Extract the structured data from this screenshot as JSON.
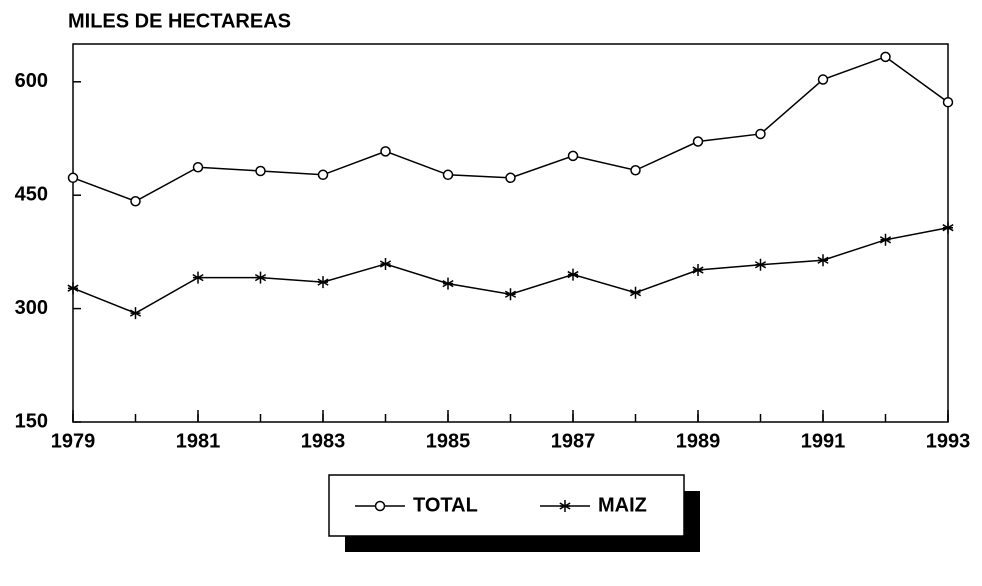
{
  "chart_data": {
    "type": "line",
    "title": "MILES DE HECTAREAS",
    "x": [
      1979,
      1980,
      1981,
      1982,
      1983,
      1984,
      1985,
      1986,
      1987,
      1988,
      1989,
      1990,
      1991,
      1992,
      1993
    ],
    "xlim": [
      1979,
      1993
    ],
    "xticks": [
      1979,
      1981,
      1983,
      1985,
      1987,
      1989,
      1991,
      1993
    ],
    "ylim": [
      150,
      650
    ],
    "yticks": [
      150,
      300,
      450,
      600
    ],
    "series": [
      {
        "name": "TOTAL",
        "color": "#000000",
        "marker": "circle",
        "values": [
          473,
          442,
          487,
          482,
          477,
          508,
          477,
          473,
          502,
          483,
          521,
          531,
          603,
          633,
          573
        ]
      },
      {
        "name": "MAIZ",
        "color": "#000000",
        "marker": "star",
        "values": [
          327,
          294,
          341,
          341,
          335,
          359,
          333,
          319,
          345,
          321,
          351,
          358,
          364,
          391,
          407
        ]
      }
    ]
  }
}
